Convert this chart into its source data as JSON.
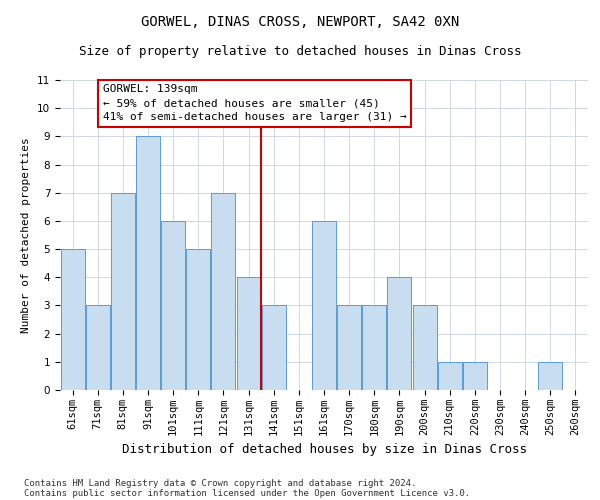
{
  "title": "GORWEL, DINAS CROSS, NEWPORT, SA42 0XN",
  "subtitle": "Size of property relative to detached houses in Dinas Cross",
  "xlabel": "Distribution of detached houses by size in Dinas Cross",
  "ylabel": "Number of detached properties",
  "categories": [
    "61sqm",
    "71sqm",
    "81sqm",
    "91sqm",
    "101sqm",
    "111sqm",
    "121sqm",
    "131sqm",
    "141sqm",
    "151sqm",
    "161sqm",
    "170sqm",
    "180sqm",
    "190sqm",
    "200sqm",
    "210sqm",
    "220sqm",
    "230sqm",
    "240sqm",
    "250sqm",
    "260sqm"
  ],
  "values": [
    5,
    3,
    7,
    9,
    6,
    5,
    7,
    4,
    3,
    0,
    6,
    3,
    3,
    4,
    3,
    1,
    1,
    0,
    0,
    1,
    0
  ],
  "bar_color": "#c9ddf0",
  "bar_edgecolor": "#5b9bd5",
  "vline_index": 8,
  "property_line_label": "GORWEL: 139sqm",
  "annotation_line1": "← 59% of detached houses are smaller (45)",
  "annotation_line2": "41% of semi-detached houses are larger (31) →",
  "annotation_box_facecolor": "#ffffff",
  "annotation_box_edgecolor": "#cc0000",
  "vline_color": "#cc0000",
  "ylim": [
    0,
    11
  ],
  "yticks": [
    0,
    1,
    2,
    3,
    4,
    5,
    6,
    7,
    8,
    9,
    10,
    11
  ],
  "grid_color": "#d0d8e8",
  "footer1": "Contains HM Land Registry data © Crown copyright and database right 2024.",
  "footer2": "Contains public sector information licensed under the Open Government Licence v3.0.",
  "title_fontsize": 10,
  "subtitle_fontsize": 9,
  "xlabel_fontsize": 9,
  "ylabel_fontsize": 8,
  "tick_fontsize": 7.5,
  "annot_fontsize": 8,
  "footer_fontsize": 6.5
}
